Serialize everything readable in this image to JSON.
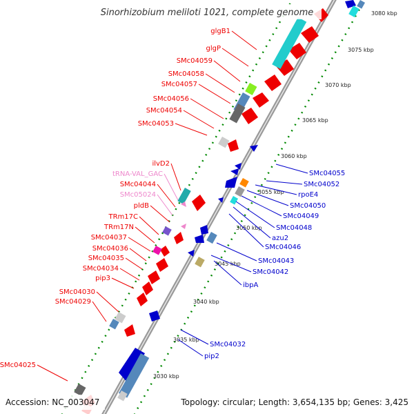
{
  "title": "Sinorhizobium meliloti 1021, complete genome",
  "accession": "Accession: NC_003047",
  "summary": "Topology: circular; Length: 3,654,135 bp; Genes: 3,425",
  "colors": {
    "forward": "#ee0000",
    "reverse": "#0000cc",
    "rna": "#ee88cc",
    "backbone": "#999999",
    "tick": "#008800"
  },
  "kbp_labels": [
    "3080 kbp",
    "3075 kbp",
    "3070 kbp",
    "3065 kbp",
    "3060 kbp",
    "3055 kbp",
    "3050 kbp",
    "3045 kbp",
    "3040 kbp",
    "3035 kbp",
    "3030 kbp"
  ],
  "left_genes": [
    {
      "name": "glgB1",
      "color": "#ee0000"
    },
    {
      "name": "glgP",
      "color": "#ee0000"
    },
    {
      "name": "SMc04059",
      "color": "#ee0000"
    },
    {
      "name": "SMc04058",
      "color": "#ee0000"
    },
    {
      "name": "SMc04057",
      "color": "#ee0000"
    },
    {
      "name": "SMc04056",
      "color": "#ee0000"
    },
    {
      "name": "SMc04054",
      "color": "#ee0000"
    },
    {
      "name": "SMc04053",
      "color": "#ee0000"
    },
    {
      "name": "ilvD2",
      "color": "#ee0000"
    },
    {
      "name": "tRNA-VAL_GAC",
      "color": "#ee88cc"
    },
    {
      "name": "SMc04044",
      "color": "#ee0000"
    },
    {
      "name": "SMc05024",
      "color": "#ee88cc"
    },
    {
      "name": "pldB",
      "color": "#ee0000"
    },
    {
      "name": "TRm17C",
      "color": "#ee0000"
    },
    {
      "name": "TRm17N",
      "color": "#ee0000"
    },
    {
      "name": "SMc04037",
      "color": "#ee0000"
    },
    {
      "name": "SMc04036",
      "color": "#ee0000"
    },
    {
      "name": "SMc04035",
      "color": "#ee0000"
    },
    {
      "name": "SMc04034",
      "color": "#ee0000"
    },
    {
      "name": "pip3",
      "color": "#ee0000"
    },
    {
      "name": "SMc04030",
      "color": "#ee0000"
    },
    {
      "name": "SMc04029",
      "color": "#ee0000"
    },
    {
      "name": "SMc04025",
      "color": "#ee0000"
    }
  ],
  "right_genes": [
    {
      "name": "SMc04055",
      "color": "#0000cc"
    },
    {
      "name": "SMc04052",
      "color": "#0000cc"
    },
    {
      "name": "rpoE4",
      "color": "#0000cc"
    },
    {
      "name": "SMc04050",
      "color": "#0000cc"
    },
    {
      "name": "SMc04049",
      "color": "#0000cc"
    },
    {
      "name": "SMc04048",
      "color": "#0000cc"
    },
    {
      "name": "azu2",
      "color": "#0000cc"
    },
    {
      "name": "SMc04046",
      "color": "#0000cc"
    },
    {
      "name": "SMc04043",
      "color": "#0000cc"
    },
    {
      "name": "SMc04042",
      "color": "#0000cc"
    },
    {
      "name": "ibpA",
      "color": "#0000cc"
    },
    {
      "name": "SMc04032",
      "color": "#0000cc"
    },
    {
      "name": "pip2",
      "color": "#0000cc"
    }
  ]
}
